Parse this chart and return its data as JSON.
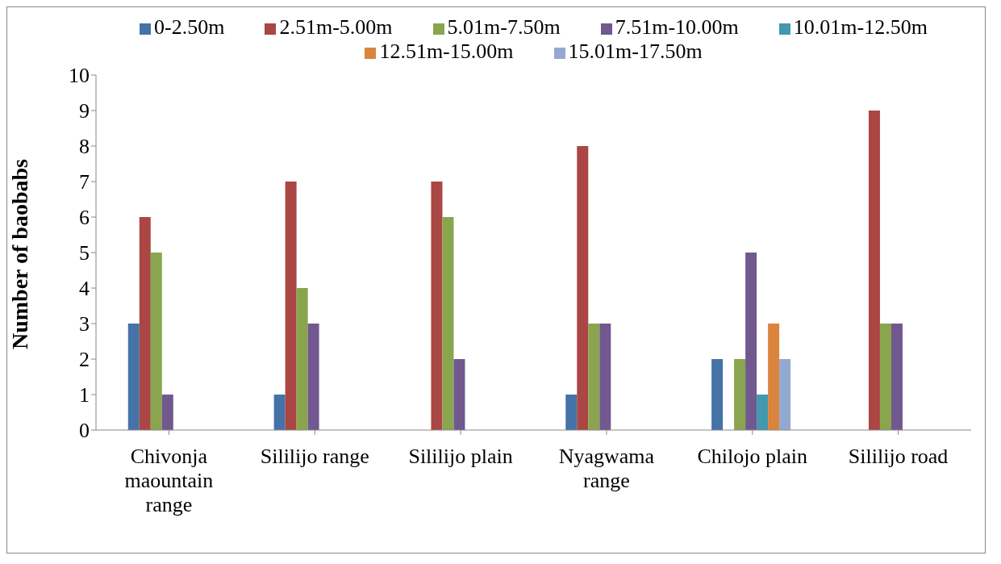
{
  "chart_data": {
    "type": "bar",
    "ylabel": "Number of baobabs",
    "categories": [
      "Chivonja maountain range",
      "Sililijo range",
      "Sililijo plain",
      "Nyagwama range",
      "Chilojo plain",
      "Sililijo road"
    ],
    "series": [
      {
        "name": "0-2.50m",
        "color": "#4572a7",
        "values": [
          3,
          1,
          null,
          1,
          2,
          null
        ]
      },
      {
        "name": "2.51m-5.00m",
        "color": "#aa4643",
        "values": [
          6,
          7,
          7,
          8,
          null,
          9
        ]
      },
      {
        "name": "5.01m-7.50m",
        "color": "#89a54e",
        "values": [
          5,
          4,
          6,
          3,
          2,
          3
        ]
      },
      {
        "name": "7.51m-10.00m",
        "color": "#71588f",
        "values": [
          1,
          3,
          2,
          3,
          5,
          3
        ]
      },
      {
        "name": "10.01m-12.50m",
        "color": "#4198af",
        "values": [
          null,
          null,
          null,
          null,
          1,
          null
        ]
      },
      {
        "name": "12.51m-15.00m",
        "color": "#db843d",
        "values": [
          null,
          null,
          null,
          null,
          3,
          null
        ]
      },
      {
        "name": "15.01m-17.50m",
        "color": "#93a9cf",
        "values": [
          null,
          null,
          null,
          null,
          2,
          null
        ]
      }
    ],
    "ylim": [
      0,
      10
    ],
    "yticks": [
      0,
      1,
      2,
      3,
      4,
      5,
      6,
      7,
      8,
      9,
      10
    ],
    "grid": false,
    "legend": "top"
  }
}
